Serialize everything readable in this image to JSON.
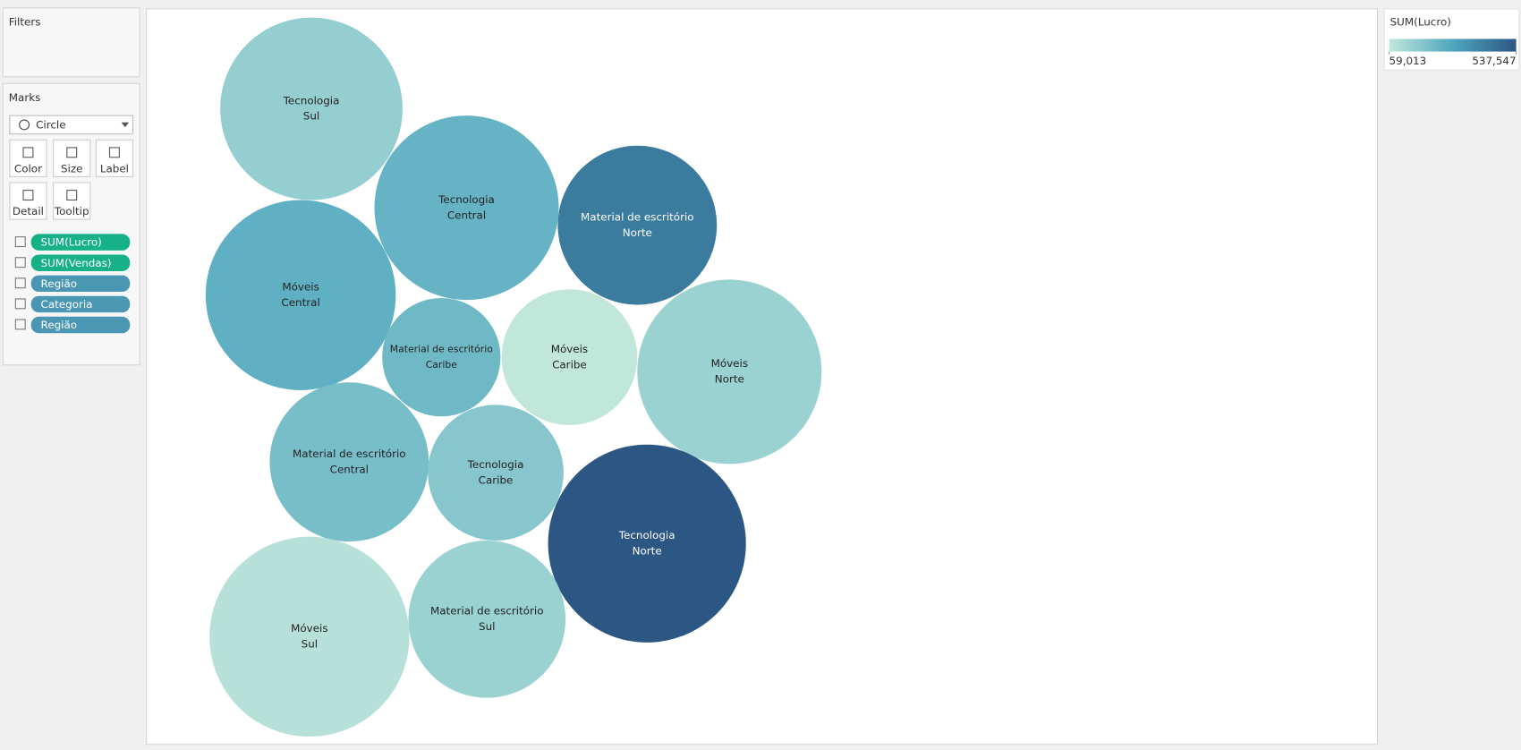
{
  "panels": {
    "filters": "Filters",
    "marks": "Marks",
    "mark_type": "Circle",
    "buttons": [
      "Color",
      "Size",
      "Label",
      "Detail",
      "Tooltip"
    ],
    "pills": [
      "SUM(Lucro)",
      "SUM(Vendas)",
      "Região",
      "Categoria",
      "Região"
    ]
  },
  "chart_data": {
    "type": "bubble",
    "legend_title": "SUM(Lucro)",
    "color_range": [
      59013,
      537547
    ],
    "legend_ticks": [
      {
        "value": 59013,
        "label": "59,013"
      },
      {
        "value": 537547,
        "label": "537,547"
      }
    ],
    "colors": [
      "#c1e7db",
      "#4ea6be",
      "#2c5784"
    ],
    "categories": [
      "Tecnologia",
      "Tecnologia",
      "Material de escritório",
      "Móveis",
      "Material de escritório",
      "Móveis",
      "Móveis",
      "Material de escritório",
      "Tecnologia",
      "Tecnologia",
      "Móveis",
      "Material de escritório"
    ],
    "regions": [
      "Sul",
      "Central",
      "Norte",
      "Central",
      "Caribe",
      "Caribe",
      "Norte",
      "Central",
      "Caribe",
      "Norte",
      "Sul",
      "Sul"
    ],
    "values": [
      150000,
      250000,
      430000,
      260000,
      230000,
      59013,
      140000,
      210000,
      180000,
      537547,
      80000,
      140000
    ]
  }
}
